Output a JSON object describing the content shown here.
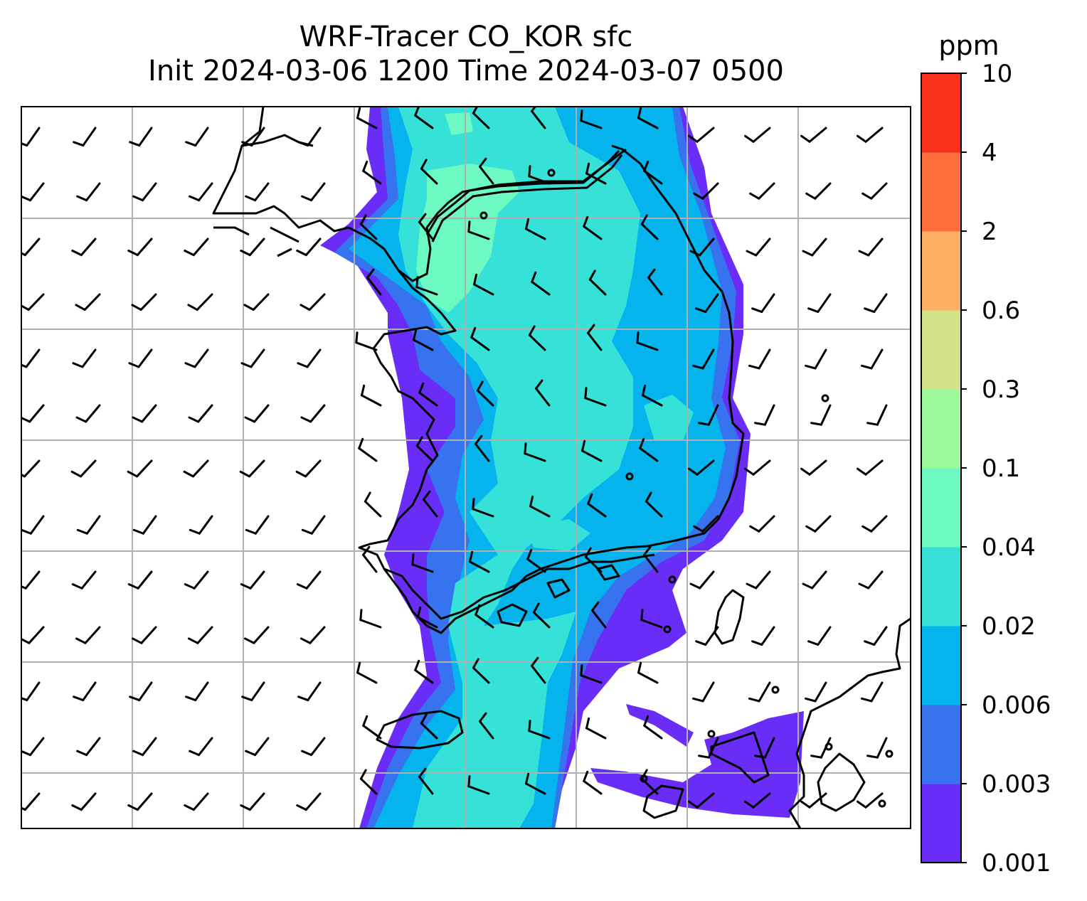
{
  "title": {
    "line1": "WRF-Tracer CO_KOR sfc",
    "line2": "Init 2024-03-06 1200 Time 2024-03-07 0500"
  },
  "colorbar": {
    "unit": "ppm",
    "levels": [
      "0.001",
      "0.003",
      "0.006",
      "0.02",
      "0.04",
      "0.1",
      "0.3",
      "0.6",
      "2",
      "4",
      "10"
    ],
    "colors": [
      "#6a2cf7",
      "#3773ef",
      "#05b4ec",
      "#36e1d8",
      "#6cf9c2",
      "#9efb9c",
      "#d2e387",
      "#feb062",
      "#fd6e3c",
      "#fa2f1c"
    ]
  },
  "map": {
    "gridlines": "on",
    "wind_barbs": "on",
    "coastlines": "on"
  }
}
